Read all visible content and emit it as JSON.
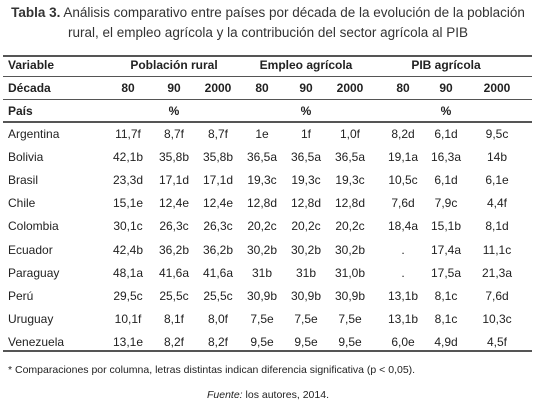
{
  "title": {
    "label": "Tabla 3.",
    "text": "Análisis comparativo entre países por década de la evolución de la población rural, el empleo agrícola y la contribución del sector agrícola al PIB"
  },
  "table": {
    "header": {
      "variable": "Variable",
      "decade": "Década",
      "country": "País",
      "groups": [
        {
          "name": "Población rural",
          "decades": [
            "80",
            "90",
            "2000"
          ],
          "unit": "%"
        },
        {
          "name": "Empleo agrícola",
          "decades": [
            "80",
            "90",
            "2000"
          ],
          "unit": "%"
        },
        {
          "name": "PIB agrícola",
          "decades": [
            "80",
            "90",
            "2000"
          ],
          "unit": "%"
        }
      ]
    },
    "rows": [
      {
        "country": "Argentina",
        "values": [
          "11,7f",
          "8,7f",
          "8,7f",
          "1e",
          "1f",
          "1,0f",
          "8,2d",
          "6,1d",
          "9,5c"
        ]
      },
      {
        "country": "Bolivia",
        "values": [
          "42,1b",
          "35,8b",
          "35,8b",
          "36,5a",
          "36,5a",
          "36,5a",
          "19,1a",
          "16,3a",
          "14b"
        ]
      },
      {
        "country": "Brasil",
        "values": [
          "23,3d",
          "17,1d",
          "17,1d",
          "19,3c",
          "19,3c",
          "19,3c",
          "10,5c",
          "6,1d",
          "6,1e"
        ]
      },
      {
        "country": "Chile",
        "values": [
          "15,1e",
          "12,4e",
          "12,4e",
          "12,8d",
          "12,8d",
          "12,8d",
          "7,6d",
          "7,9c",
          "4,4f"
        ]
      },
      {
        "country": "Colombia",
        "values": [
          "30,1c",
          "26,3c",
          "26,3c",
          "20,2c",
          "20,2c",
          "20,2c",
          "18,4a",
          "15,1b",
          "8,1d"
        ]
      },
      {
        "country": "Ecuador",
        "values": [
          "42,4b",
          "36,2b",
          "36,2b",
          "30,2b",
          "30,2b",
          "30,2b",
          ".",
          "17,4a",
          "11,1c"
        ]
      },
      {
        "country": "Paraguay",
        "values": [
          "48,1a",
          "41,6a",
          "41,6a",
          "31b",
          "31b",
          "31,0b",
          ".",
          "17,5a",
          "21,3a"
        ]
      },
      {
        "country": "Perú",
        "values": [
          "29,5c",
          "25,5c",
          "25,5c",
          "30,9b",
          "30,9b",
          "30,9b",
          "13,1b",
          "8,1c",
          "7,6d"
        ]
      },
      {
        "country": "Uruguay",
        "values": [
          "10,1f",
          "8,1f",
          "8,0f",
          "7,5e",
          "7,5e",
          "7,5e",
          "13,1b",
          "8,1c",
          "10,3c"
        ]
      },
      {
        "country": "Venezuela",
        "values": [
          "13,1e",
          "8,2f",
          "8,2f",
          "9,5e",
          "9,5e",
          "9,5e",
          "6,0e",
          "4,9d",
          "4,5f"
        ]
      }
    ]
  },
  "footnote": "* Comparaciones por columna, letras distintas indican diferencia significativa (p < 0,05).",
  "source": {
    "label": "Fuente:",
    "text": "los autores, 2014."
  }
}
